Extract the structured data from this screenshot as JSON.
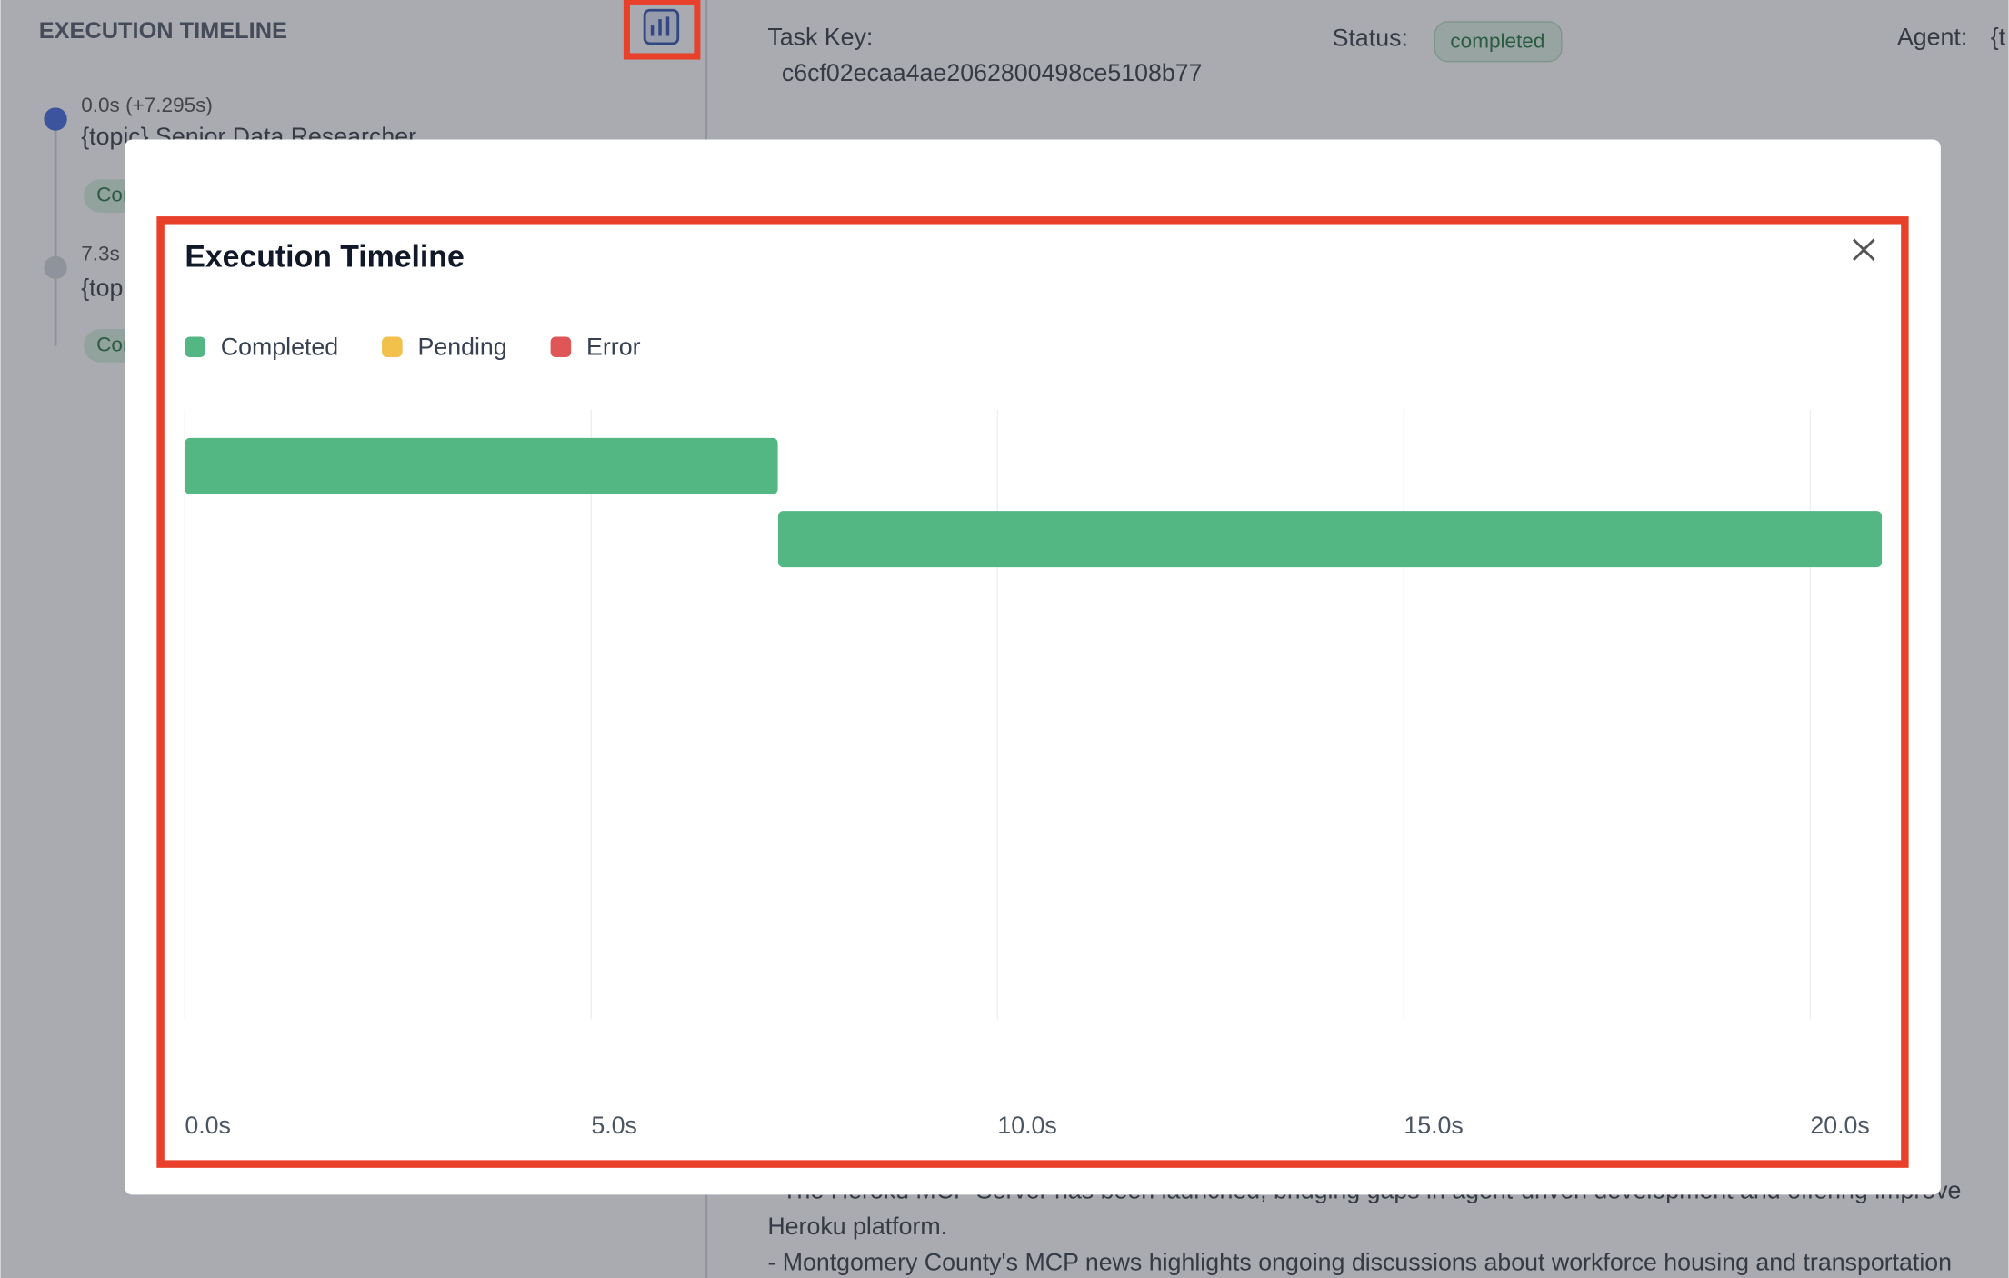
{
  "sidebar": {
    "title": "EXECUTION TIMELINE",
    "items": [
      {
        "time": "0.0s (+7.295s)",
        "label": "{topic} Senior Data Researcher",
        "badge": "Completed"
      },
      {
        "time": "7.3s",
        "label": "{top",
        "badge": "Completed"
      }
    ]
  },
  "details": {
    "task_key_label": "Task Key:",
    "task_key": "c6cf02ecaa4ae2062800498ce5108b77",
    "status_label": "Status:",
    "status": "completed",
    "agent_label": "Agent:",
    "agent": "{t",
    "lines": [
      "- The Heroku MCP Server has been launched, bridging gaps in agent-driven development and offering improve",
      "Heroku platform.",
      "- Montgomery County's MCP news highlights ongoing discussions about workforce housing and transportation"
    ]
  },
  "chart_data": {
    "type": "gantt",
    "title": "Execution Timeline",
    "series": [
      {
        "name": "Completed",
        "color": "#53b783",
        "starts": [
          0,
          7.3
        ],
        "ends": [
          7.295,
          20.88
        ]
      },
      {
        "name": "Pending",
        "color": "#f2c14b",
        "starts": [],
        "ends": []
      },
      {
        "name": "Error",
        "color": "#e05656",
        "starts": [],
        "ends": []
      }
    ],
    "xlim": [
      0,
      20.88
    ],
    "xticks": [
      {
        "value": 0,
        "label": "0.0s"
      },
      {
        "value": 5,
        "label": "5.0s"
      },
      {
        "value": 10,
        "label": "10.0s"
      },
      {
        "value": 15,
        "label": "15.0s"
      },
      {
        "value": 20,
        "label": "20.0s"
      }
    ],
    "grid": true
  }
}
